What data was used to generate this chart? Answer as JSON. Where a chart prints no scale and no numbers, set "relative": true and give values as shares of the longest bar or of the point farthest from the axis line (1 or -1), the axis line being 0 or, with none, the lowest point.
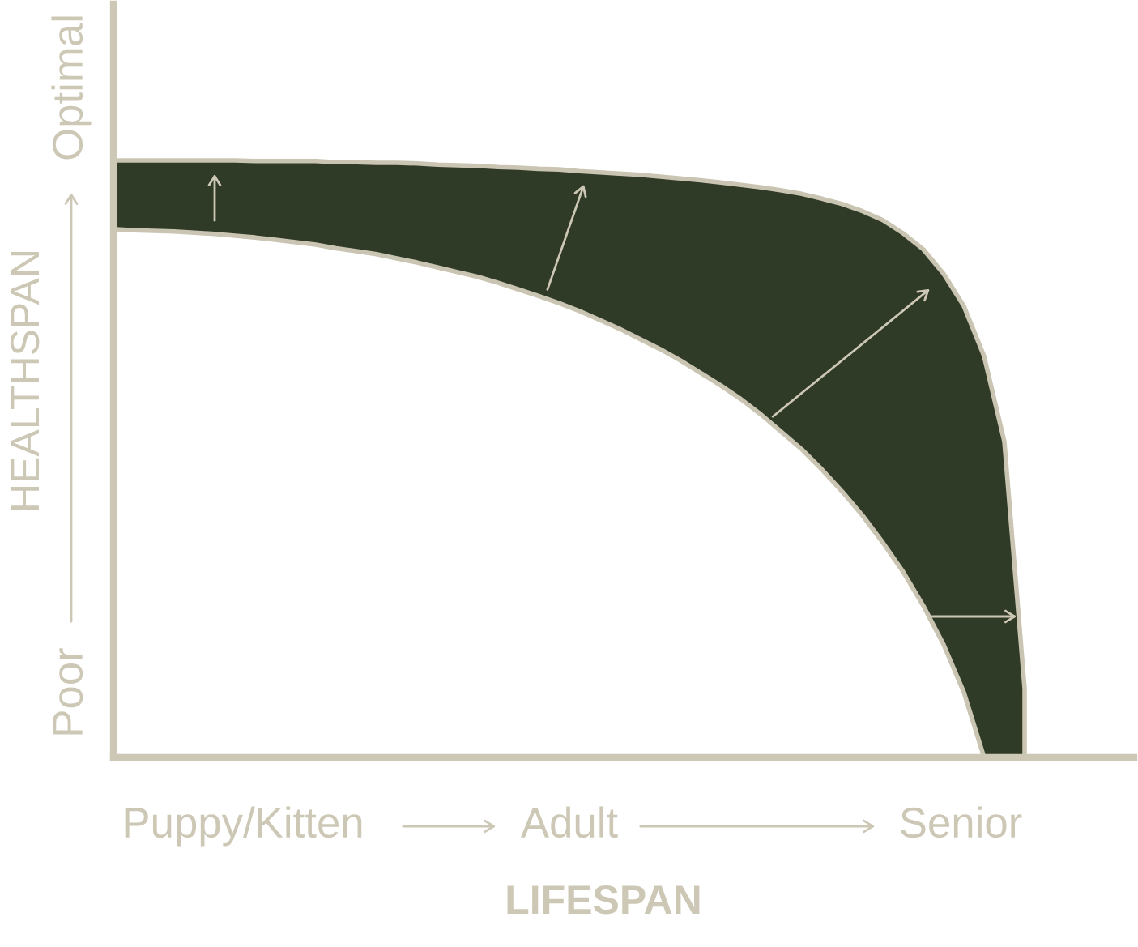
{
  "chart_data": {
    "type": "area",
    "relative": true,
    "xlabel": "LIFESPAN",
    "ylabel": "HEALTHSPAN",
    "categories": [
      null,
      null,
      null,
      null,
      null,
      null,
      null,
      null,
      null,
      null,
      null,
      null,
      null,
      null,
      null,
      null,
      null,
      null,
      null,
      null,
      null,
      null,
      null,
      null,
      null,
      null,
      null,
      null,
      null,
      null,
      null,
      null,
      null,
      null,
      null,
      null,
      null,
      null,
      null,
      null,
      null,
      null,
      null,
      null,
      null,
      null,
      null,
      null,
      null,
      null,
      null
    ],
    "series": [
      {
        "color": "#2f3a27",
        "values": [
          1.0,
          1.0,
          1.0,
          1.0,
          1.0,
          1.0,
          1.0,
          0.999,
          0.999,
          0.999,
          0.999,
          0.997,
          0.997,
          0.996,
          0.996,
          0.995,
          0.993,
          0.992,
          0.991,
          0.989,
          0.988,
          0.986,
          0.985,
          0.982,
          0.98,
          0.978,
          0.976,
          0.973,
          0.97,
          0.967,
          0.963,
          0.959,
          0.955,
          0.95,
          0.944,
          0.936,
          0.927,
          0.915,
          0.9,
          0.878,
          0.851,
          0.81,
          0.756,
          0.672,
          0.529,
          0.115,
          null,
          null,
          null,
          null,
          null
        ]
      },
      {
        "color": "#ffffff",
        "values": [
          0.885,
          0.883,
          0.882,
          0.881,
          0.879,
          0.877,
          0.874,
          0.871,
          0.867,
          0.863,
          0.859,
          0.853,
          0.848,
          0.843,
          0.836,
          0.829,
          0.821,
          0.813,
          0.805,
          0.795,
          0.784,
          0.773,
          0.761,
          0.748,
          0.733,
          0.718,
          0.701,
          0.684,
          0.665,
          0.644,
          0.623,
          0.6,
          0.574,
          0.545,
          0.516,
          0.482,
          0.445,
          0.405,
          0.36,
          0.311,
          0.254,
          0.189,
          0.109,
          0.0,
          0.0,
          0.0,
          null,
          null,
          null,
          null,
          null
        ]
      }
    ],
    "annotations": [
      "Puppy/Kitten",
      "Adult",
      "Senior",
      "Poor",
      "Optimal"
    ]
  }
}
